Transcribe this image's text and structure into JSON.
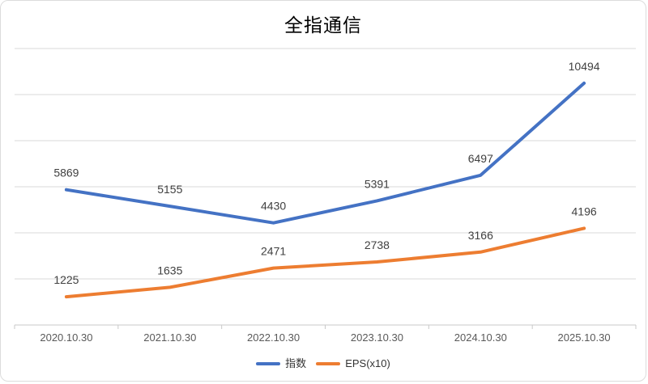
{
  "window": {
    "title": "全指通信"
  },
  "chart_data": {
    "type": "line",
    "title": "全指通信",
    "categories": [
      "2020.10.30",
      "2021.10.30",
      "2022.10.30",
      "2023.10.30",
      "2024.10.30",
      "2025.10.30"
    ],
    "series": [
      {
        "name": "指数",
        "color": "#4472C4",
        "values": [
          5869,
          5155,
          4430,
          5391,
          6497,
          10494
        ]
      },
      {
        "name": "EPS(x10)",
        "color": "#ED7D31",
        "values": [
          1225,
          1635,
          2471,
          2738,
          3166,
          4196
        ]
      }
    ],
    "ylim": [
      0,
      12000
    ],
    "grid_step": 2000,
    "y_axis_labels_visible": false,
    "data_labels_visible": true,
    "legend_position": "bottom",
    "colors": {
      "gridline": "#D9D9D9",
      "axis_line": "#C9C9C9",
      "data_label": "#404040",
      "axis_label": "#595959",
      "title": "#000000"
    }
  }
}
